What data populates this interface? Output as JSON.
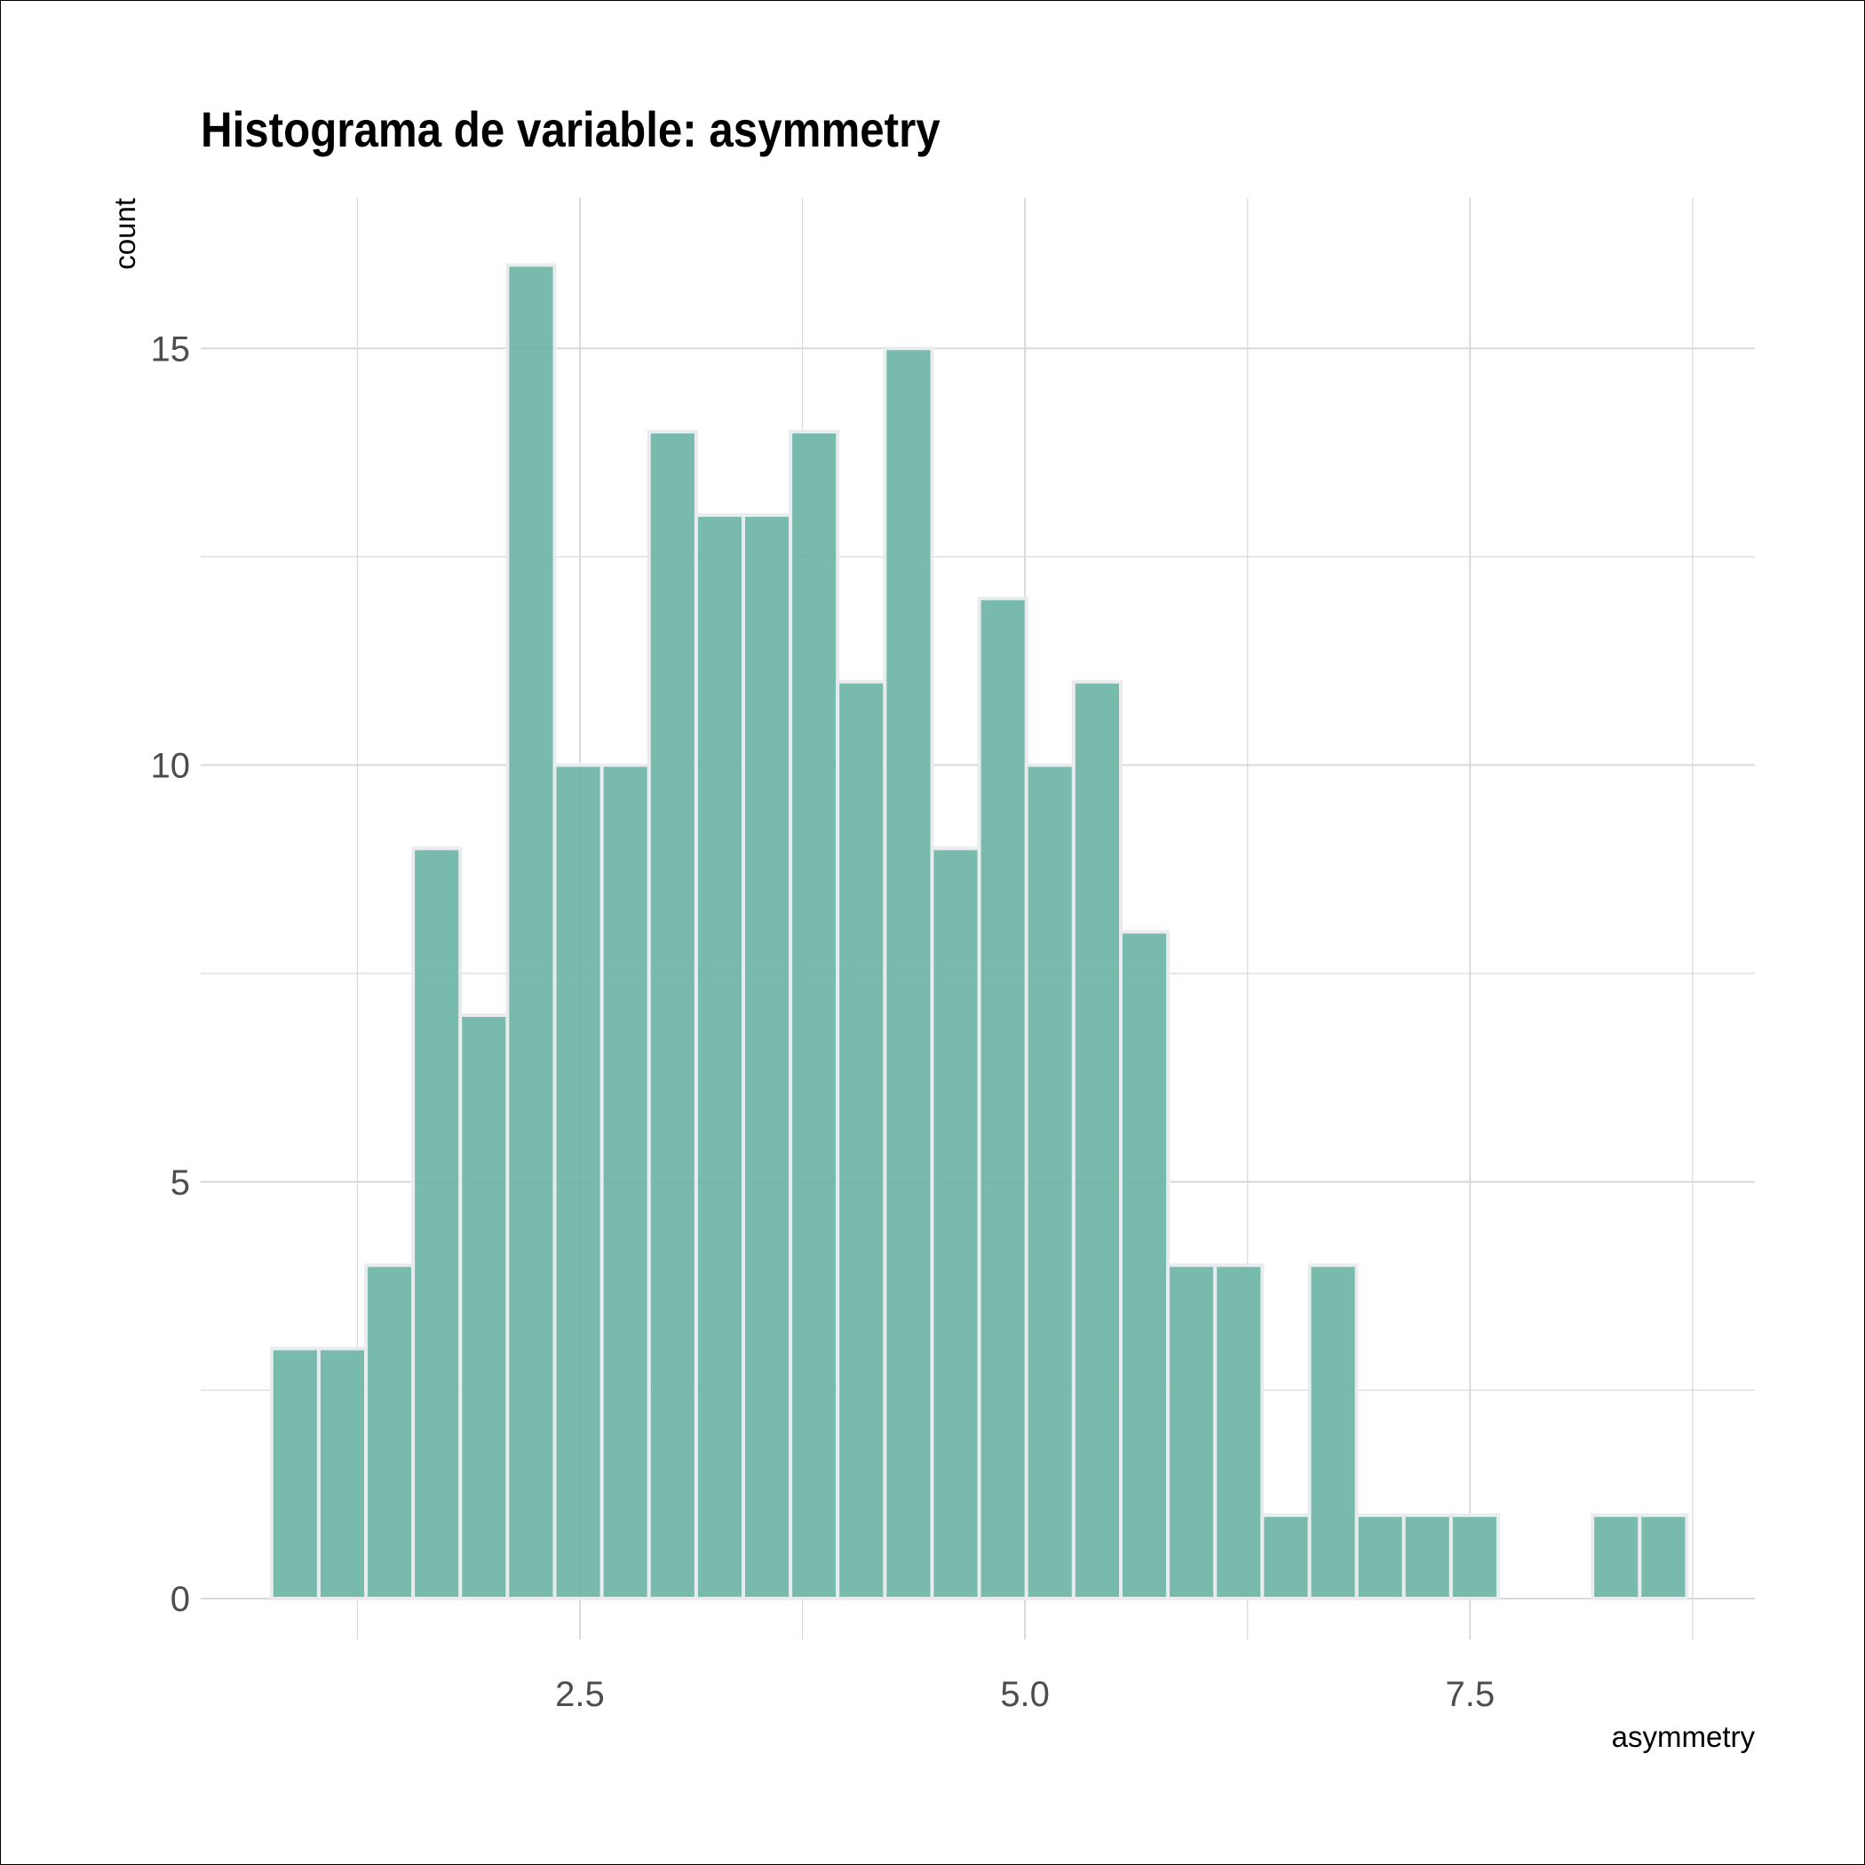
{
  "chart_data": {
    "type": "histogram",
    "title": "Histograma de variable: asymmetry",
    "xlabel": "asymmetry",
    "ylabel": "count",
    "bin_width": 0.265,
    "bin_start": 0.7681,
    "counts": [
      3,
      3,
      4,
      9,
      7,
      16,
      10,
      10,
      14,
      13,
      13,
      14,
      11,
      15,
      9,
      12,
      10,
      11,
      8,
      4,
      4,
      1,
      4,
      1,
      1,
      1,
      0,
      0,
      1,
      1
    ],
    "x_ticks": [
      2.5,
      5.0,
      7.5
    ],
    "x_tick_labels": [
      "2.5",
      "5.0",
      "7.5"
    ],
    "y_ticks": [
      0,
      5,
      10,
      15
    ],
    "y_tick_labels": [
      "0",
      "5",
      "10",
      "15"
    ],
    "xlim": [
      0.37,
      9.1
    ],
    "ylim": [
      0,
      16.8
    ],
    "grid": true,
    "colors": {
      "bar_fill": "#69b3a2",
      "bar_stroke": "#e9ecef",
      "grid": "#d9d9d9"
    }
  }
}
